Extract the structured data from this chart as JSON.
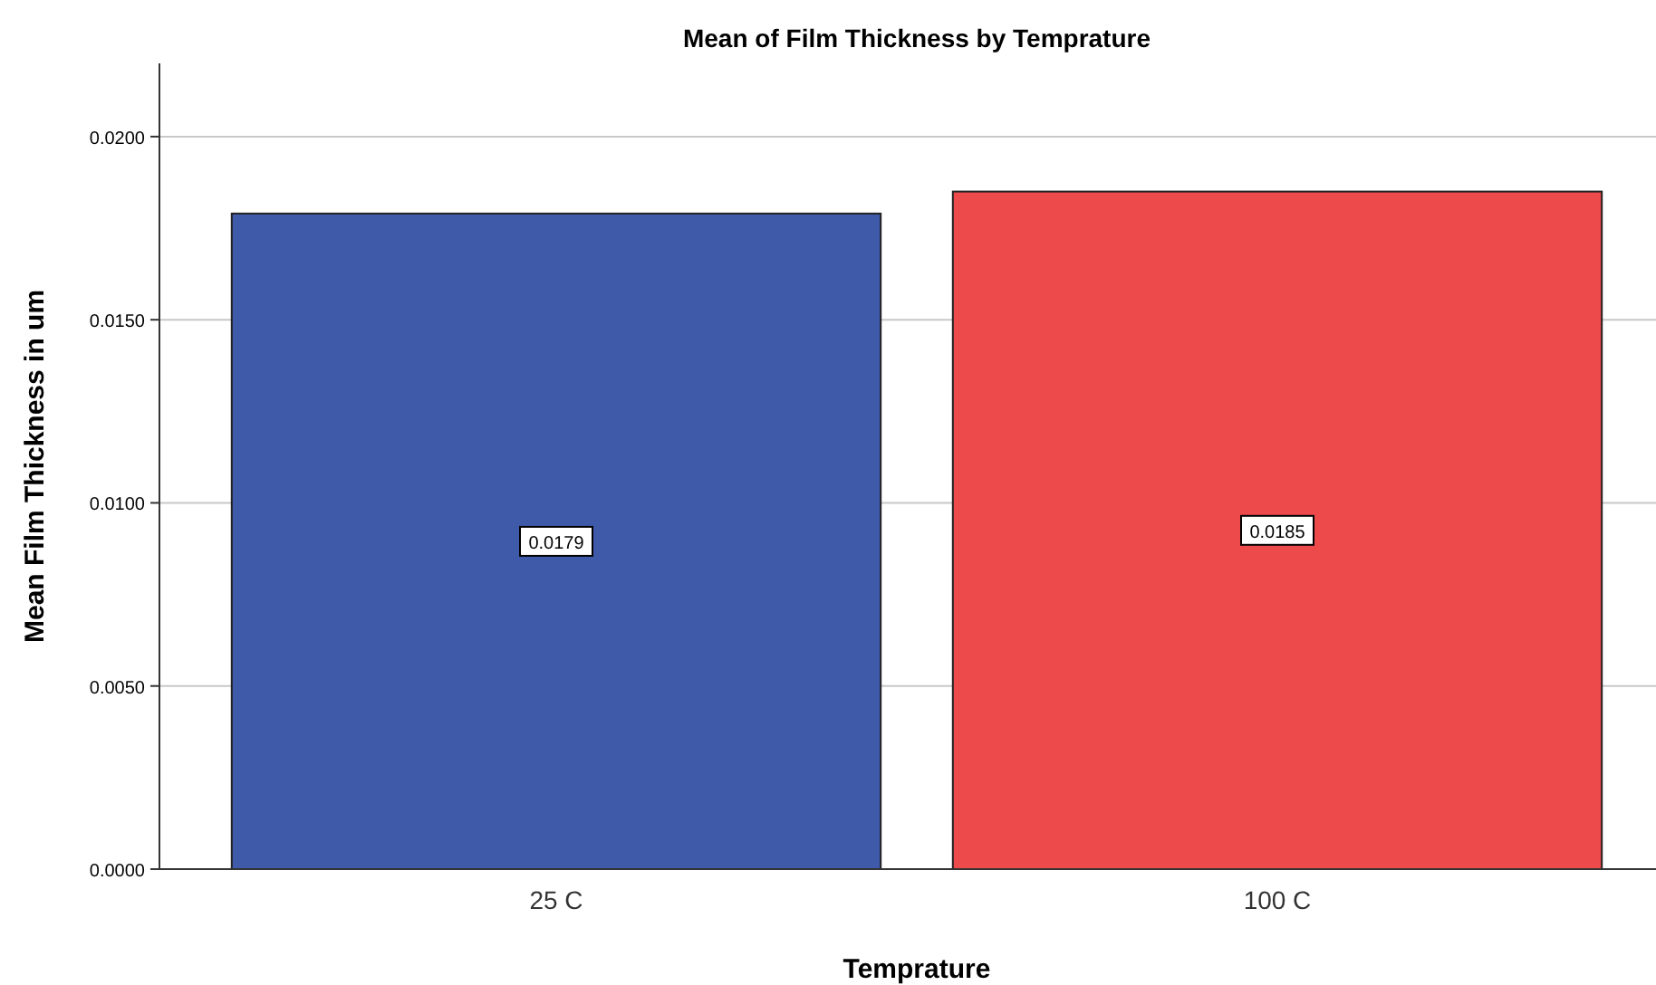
{
  "chart_data": {
    "type": "bar",
    "title": "Mean of Film Thickness by Temprature",
    "xlabel": "Temprature",
    "ylabel": "Mean Film Thickness in um",
    "categories": [
      "25 C",
      "100 C"
    ],
    "values": [
      0.0179,
      0.0185
    ],
    "colors": [
      "#3f5aa8",
      "#ec4a4b"
    ],
    "ylim": [
      0,
      0.022
    ],
    "yticks": [
      {
        "value": 0,
        "label": "0.0000"
      },
      {
        "value": 0.005,
        "label": "0.0050"
      },
      {
        "value": 0.01,
        "label": "0.0100"
      },
      {
        "value": 0.015,
        "label": "0.0150"
      },
      {
        "value": 0.02,
        "label": "0.0200"
      }
    ],
    "grid": "y",
    "data_labels": true
  }
}
